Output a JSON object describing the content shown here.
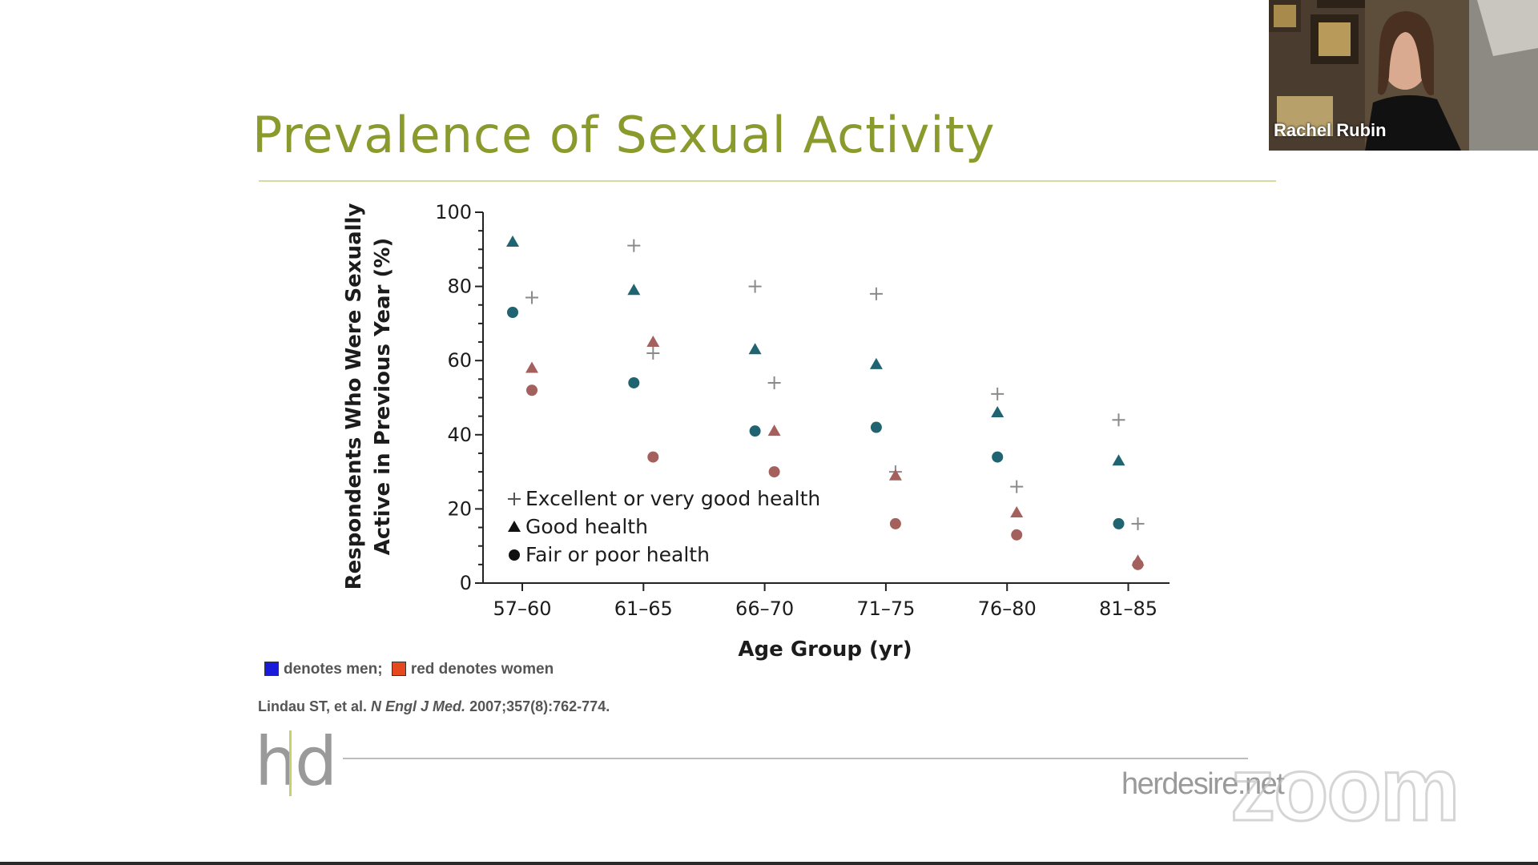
{
  "slide": {
    "title": "Prevalence of Sexual Activity",
    "legend_note": {
      "men_label": "denotes men;",
      "women_label": "red denotes women",
      "men_color": "#1a1adb",
      "women_color": "#e5481e"
    },
    "citation": {
      "authors": "Lindau ST, et al.",
      "journal": "N Engl J Med.",
      "details": "2007;357(8):762-774."
    },
    "footer": {
      "logo_icon": "hd-logo-icon",
      "site": "herdesire.net"
    }
  },
  "zoom": {
    "watermark": "zoom",
    "participant_name": "Rachel Rubin"
  },
  "chart_data": {
    "type": "scatter",
    "xlabel": "Age Group (yr)",
    "ylabel": [
      "Respondents Who Were Sexually",
      "Active in Previous Year (%)"
    ],
    "categories": [
      "57–60",
      "61–65",
      "66–70",
      "71–75",
      "76–80",
      "81–85"
    ],
    "ylim": [
      0,
      100
    ],
    "yticks": [
      0,
      20,
      40,
      60,
      80,
      100
    ],
    "grid": false,
    "legend_position": "bottom-left",
    "legend": [
      {
        "marker": "plus",
        "label": "Excellent or very good health"
      },
      {
        "marker": "triangle",
        "label": "Good health"
      },
      {
        "marker": "circle",
        "label": "Fair or poor health"
      }
    ],
    "colors": {
      "men": "#1f6470",
      "women": "#a4605c",
      "plus": "#8a8a8a"
    },
    "series": [
      {
        "health": "excellent",
        "sex": "men",
        "marker": "plus",
        "values": [
          null,
          91,
          80,
          78,
          51,
          44
        ]
      },
      {
        "health": "excellent",
        "sex": "women",
        "marker": "plus",
        "values": [
          77,
          62,
          54,
          30,
          26,
          16
        ]
      },
      {
        "health": "good",
        "sex": "men",
        "marker": "triangle",
        "values": [
          92,
          79,
          63,
          59,
          46,
          33
        ]
      },
      {
        "health": "good",
        "sex": "women",
        "marker": "triangle",
        "values": [
          58,
          65,
          41,
          29,
          19,
          6
        ]
      },
      {
        "health": "fair_poor",
        "sex": "men",
        "marker": "circle",
        "values": [
          73,
          54,
          41,
          42,
          34,
          16
        ]
      },
      {
        "health": "fair_poor",
        "sex": "women",
        "marker": "circle",
        "values": [
          52,
          34,
          30,
          16,
          13,
          5
        ]
      }
    ]
  }
}
